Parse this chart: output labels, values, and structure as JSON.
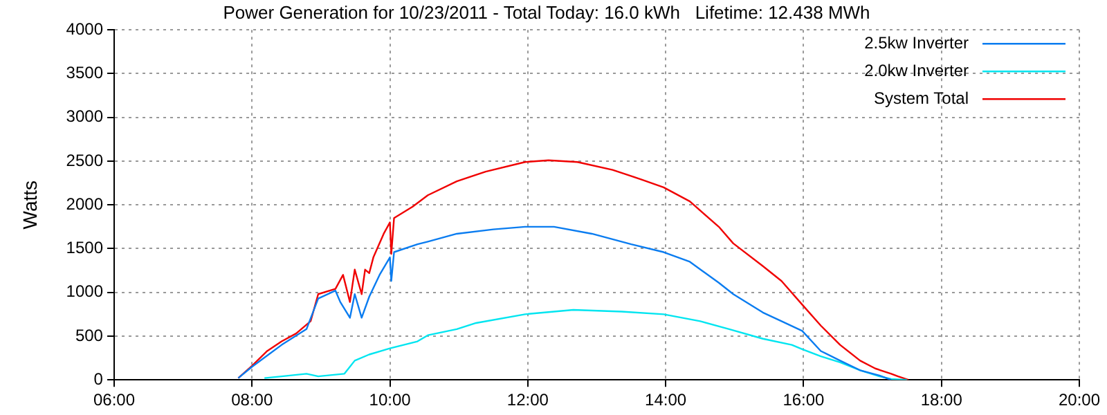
{
  "chart_data": {
    "type": "line",
    "title": "Power Generation for 10/23/2011 - Total Today: 16.0 kWh   Lifetime: 12.438 MWh",
    "ylabel": "Watts",
    "xlim": [
      6,
      20
    ],
    "xticks": [
      {
        "value": 6,
        "label": "06:00"
      },
      {
        "value": 8,
        "label": "08:00"
      },
      {
        "value": 10,
        "label": "10:00"
      },
      {
        "value": 12,
        "label": "12:00"
      },
      {
        "value": 14,
        "label": "14:00"
      },
      {
        "value": 16,
        "label": "16:00"
      },
      {
        "value": 18,
        "label": "18:00"
      },
      {
        "value": 20,
        "label": "20:00"
      }
    ],
    "ylim": [
      0,
      4000
    ],
    "yticks": [
      0,
      500,
      1000,
      1500,
      2000,
      2500,
      3000,
      3500,
      4000
    ],
    "grid": true,
    "legend": "top right",
    "line_style": "solid",
    "marker": "none",
    "series": [
      {
        "name": "2.5kw Inverter",
        "color": "#0a7cf0",
        "x": [
          7.8,
          8.0,
          8.43,
          8.79,
          8.96,
          9.21,
          9.28,
          9.42,
          9.49,
          9.59,
          9.7,
          9.85,
          10.0,
          10.02,
          10.06,
          10.4,
          10.55,
          10.97,
          11.5,
          11.96,
          12.38,
          12.93,
          13.5,
          13.97,
          14.35,
          14.77,
          14.98,
          15.41,
          15.68,
          15.98,
          16.25,
          16.53,
          16.82,
          17.1,
          17.27
        ],
        "values": [
          20,
          150,
          400,
          580,
          930,
          1020,
          890,
          710,
          980,
          710,
          950,
          1200,
          1400,
          1130,
          1460,
          1550,
          1580,
          1670,
          1720,
          1750,
          1750,
          1670,
          1550,
          1460,
          1350,
          1110,
          980,
          770,
          670,
          560,
          330,
          220,
          110,
          50,
          0
        ]
      },
      {
        "name": "2.0kw Inverter",
        "color": "#00e5f0",
        "x": [
          8.18,
          8.43,
          8.79,
          8.96,
          9.34,
          9.49,
          9.7,
          10.0,
          10.4,
          10.55,
          10.97,
          11.25,
          11.96,
          12.66,
          13.36,
          13.97,
          14.5,
          14.92,
          15.41,
          15.83,
          15.98,
          16.25,
          16.53,
          16.82,
          17.1,
          17.27,
          17.5
        ],
        "values": [
          20,
          40,
          70,
          40,
          70,
          220,
          290,
          360,
          440,
          510,
          580,
          650,
          750,
          800,
          780,
          750,
          670,
          580,
          470,
          400,
          350,
          270,
          200,
          110,
          40,
          10,
          0
        ]
      },
      {
        "name": "System Total",
        "color": "#f00000",
        "x": [
          7.8,
          8.0,
          8.22,
          8.43,
          8.64,
          8.85,
          8.96,
          9.21,
          9.32,
          9.42,
          9.49,
          9.59,
          9.64,
          9.7,
          9.76,
          9.91,
          10.0,
          10.02,
          10.06,
          10.33,
          10.55,
          10.97,
          11.39,
          11.96,
          12.3,
          12.72,
          13.23,
          13.65,
          13.97,
          14.35,
          14.77,
          14.98,
          15.41,
          15.68,
          15.98,
          16.25,
          16.53,
          16.82,
          17.04,
          17.27,
          17.37,
          17.52
        ],
        "values": [
          20,
          160,
          330,
          440,
          530,
          670,
          980,
          1040,
          1200,
          890,
          1260,
          980,
          1260,
          1220,
          1400,
          1670,
          1800,
          1440,
          1850,
          1980,
          2110,
          2270,
          2380,
          2490,
          2510,
          2490,
          2400,
          2290,
          2200,
          2040,
          1750,
          1560,
          1300,
          1130,
          860,
          620,
          400,
          220,
          130,
          70,
          40,
          0
        ]
      }
    ]
  }
}
